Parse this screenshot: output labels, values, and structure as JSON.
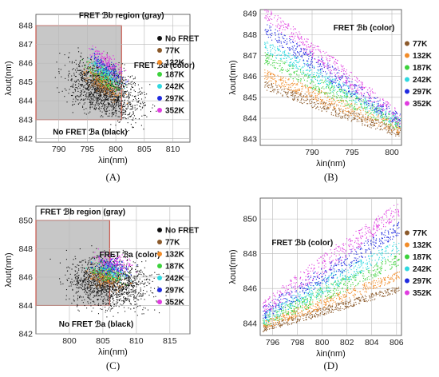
{
  "figure": {
    "colors": {
      "black": "#111111",
      "77K": "#8B5A2B",
      "132K": "#F28C28",
      "187K": "#3CD23C",
      "242K": "#2ED8E0",
      "297K": "#1F2BE0",
      "352K": "#E03CE0",
      "region_fill": "#c7c7c7",
      "region_border": "#c0392b",
      "grid": "#b8b8b8"
    }
  },
  "chart_data": [
    {
      "id": "A",
      "type": "scatter",
      "panel_label": "(A)",
      "xlabel": "λin(nm)",
      "ylabel": "λout(nm)",
      "xlim": [
        786,
        813
      ],
      "ylim": [
        841.8,
        848.6
      ],
      "xticks": [
        790,
        795,
        800,
        805,
        810
      ],
      "yticks": [
        842,
        843,
        844,
        845,
        846,
        847,
        848
      ],
      "grid": true,
      "legend_position": "right",
      "legend": [
        {
          "name": "No FRET",
          "color": "#111111"
        },
        {
          "name": "77K",
          "color": "#8B5A2B"
        },
        {
          "name": "132K",
          "color": "#F28C28"
        },
        {
          "name": "187K",
          "color": "#3CD23C"
        },
        {
          "name": "242K",
          "color": "#2ED8E0"
        },
        {
          "name": "297K",
          "color": "#1F2BE0"
        },
        {
          "name": "352K",
          "color": "#E03CE0"
        }
      ],
      "region": {
        "x": [
          786,
          801
        ],
        "y": [
          843,
          848
        ]
      },
      "annotations": [
        {
          "text": "FRET ℬb region (gray)",
          "x": 801,
          "y": 848.4
        },
        {
          "text": "FRET ℬa (color)",
          "x": 808.5,
          "y": 845.75
        },
        {
          "text": "No FRET ℬa (black)",
          "x": 795.5,
          "y": 842.2
        }
      ],
      "cloud": {
        "center_x": 798,
        "center_y": 844.6,
        "spread_x": 6.5,
        "spread_y": 1.4,
        "slope": -0.1
      }
    },
    {
      "id": "B",
      "type": "scatter",
      "panel_label": "(B)",
      "xlabel": "λin(nm)",
      "ylabel": "λout(nm)",
      "xlim": [
        783.5,
        801.2
      ],
      "ylim": [
        842.7,
        849.2
      ],
      "xticks": [
        790,
        795,
        800
      ],
      "yticks": [
        843,
        844,
        845,
        846,
        847,
        848,
        849
      ],
      "grid": true,
      "legend_position": "right",
      "legend": [
        {
          "name": "77K",
          "color": "#8B5A2B"
        },
        {
          "name": "132K",
          "color": "#F28C28"
        },
        {
          "name": "187K",
          "color": "#3CD23C"
        },
        {
          "name": "242K",
          "color": "#2ED8E0"
        },
        {
          "name": "297K",
          "color": "#1F2BE0"
        },
        {
          "name": "352K",
          "color": "#E03CE0"
        }
      ],
      "annotations": [
        {
          "text": "FRET ℬb (color)",
          "x": 796.5,
          "y": 848.2
        }
      ],
      "series": [
        {
          "name": "77K",
          "start": [
            784,
            845.6
          ],
          "end": [
            801,
            843.3
          ],
          "width": 0.6
        },
        {
          "name": "132K",
          "start": [
            784,
            846.1
          ],
          "end": [
            801,
            843.5
          ],
          "width": 0.7
        },
        {
          "name": "187K",
          "start": [
            784,
            846.9
          ],
          "end": [
            801,
            843.7
          ],
          "width": 0.8
        },
        {
          "name": "242K",
          "start": [
            784,
            847.5
          ],
          "end": [
            801,
            843.8
          ],
          "width": 0.8
        },
        {
          "name": "297K",
          "start": [
            784,
            848.3
          ],
          "end": [
            801,
            843.9
          ],
          "width": 0.9
        },
        {
          "name": "352K",
          "start": [
            784,
            849.1
          ],
          "end": [
            801,
            844.0
          ],
          "width": 0.9
        }
      ]
    },
    {
      "id": "C",
      "type": "scatter",
      "panel_label": "(C)",
      "xlabel": "λin(nm)",
      "ylabel": "λout(nm)",
      "xlim": [
        795,
        818
      ],
      "ylim": [
        842,
        851
      ],
      "xticks": [
        800,
        805,
        810,
        815
      ],
      "yticks": [
        842,
        844,
        846,
        848,
        850
      ],
      "grid": true,
      "legend_position": "right",
      "legend": [
        {
          "name": "No FRET",
          "color": "#111111"
        },
        {
          "name": "77K",
          "color": "#8B5A2B"
        },
        {
          "name": "132K",
          "color": "#F28C28"
        },
        {
          "name": "187K",
          "color": "#3CD23C"
        },
        {
          "name": "242K",
          "color": "#2ED8E0"
        },
        {
          "name": "297K",
          "color": "#1F2BE0"
        },
        {
          "name": "352K",
          "color": "#E03CE0"
        }
      ],
      "region": {
        "x": [
          795,
          806
        ],
        "y": [
          844,
          850
        ]
      },
      "annotations": [
        {
          "text": "FRET ℬb region (gray)",
          "x": 802,
          "y": 850.4
        },
        {
          "text": "FRET ℬa (color)",
          "x": 809,
          "y": 847.4
        },
        {
          "text": "No FRET ℬa (black)",
          "x": 804,
          "y": 842.5
        }
      ],
      "cloud": {
        "center_x": 806,
        "center_y": 845.6,
        "spread_x": 6,
        "spread_y": 1.8,
        "slope": -0.05
      }
    },
    {
      "id": "D",
      "type": "scatter",
      "panel_label": "(D)",
      "xlabel": "λin(nm)",
      "ylabel": "λout(nm)",
      "xlim": [
        795,
        806.4
      ],
      "ylim": [
        843.3,
        851.2
      ],
      "xticks": [
        796,
        798,
        800,
        802,
        804,
        806
      ],
      "yticks": [
        844,
        846,
        848,
        850
      ],
      "grid": true,
      "legend_position": "right",
      "legend": [
        {
          "name": "77K",
          "color": "#8B5A2B"
        },
        {
          "name": "132K",
          "color": "#F28C28"
        },
        {
          "name": "187K",
          "color": "#3CD23C"
        },
        {
          "name": "242K",
          "color": "#2ED8E0"
        },
        {
          "name": "297K",
          "color": "#1F2BE0"
        },
        {
          "name": "352K",
          "color": "#E03CE0"
        }
      ],
      "annotations": [
        {
          "text": "FRET ℬb (color)",
          "x": 798.4,
          "y": 848.5
        }
      ],
      "series": [
        {
          "name": "77K",
          "start": [
            795.2,
            843.7
          ],
          "end": [
            806.2,
            846.0
          ],
          "width": 0.5
        },
        {
          "name": "132K",
          "start": [
            795.2,
            843.9
          ],
          "end": [
            806.2,
            846.8
          ],
          "width": 0.7
        },
        {
          "name": "187K",
          "start": [
            795.2,
            844.1
          ],
          "end": [
            806.2,
            847.7
          ],
          "width": 0.9
        },
        {
          "name": "242K",
          "start": [
            795.2,
            844.3
          ],
          "end": [
            806.2,
            848.5
          ],
          "width": 1.0
        },
        {
          "name": "297K",
          "start": [
            795.2,
            844.6
          ],
          "end": [
            806.2,
            849.5
          ],
          "width": 1.1
        },
        {
          "name": "352K",
          "start": [
            795.2,
            844.9
          ],
          "end": [
            806.2,
            850.6
          ],
          "width": 1.2
        }
      ]
    }
  ]
}
